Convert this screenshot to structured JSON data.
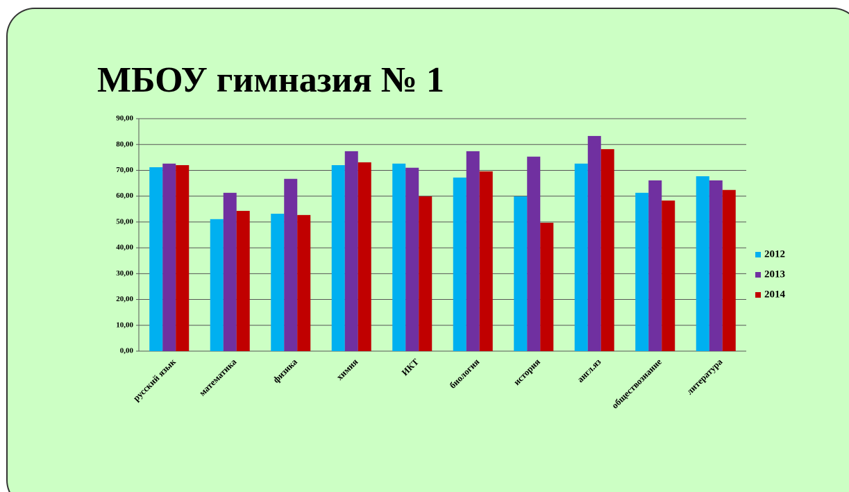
{
  "chart_data": {
    "type": "bar",
    "title": "МБОУ гимназия № 1",
    "categories": [
      "русский язык",
      "математика",
      "физика",
      "химия",
      "ИКТ",
      "биология",
      "история",
      "англ.яз",
      "обществознание",
      "литература"
    ],
    "series": [
      {
        "name": "2012",
        "color": "#00b0f0",
        "values": [
          71.2,
          51.1,
          53.2,
          72.0,
          72.6,
          67.2,
          59.9,
          72.6,
          61.3,
          67.7
        ]
      },
      {
        "name": "2013",
        "color": "#7030a0",
        "values": [
          72.6,
          61.3,
          66.7,
          77.4,
          71.0,
          77.4,
          75.3,
          83.3,
          66.1,
          66.1
        ]
      },
      {
        "name": "2014",
        "color": "#c00000",
        "values": [
          72.0,
          54.3,
          52.7,
          73.1,
          59.9,
          69.6,
          49.7,
          78.2,
          58.3,
          62.4
        ]
      }
    ],
    "ylim": [
      0,
      90
    ],
    "yticks": [
      {
        "value": 0,
        "label": "0,00"
      },
      {
        "value": 10,
        "label": "10,00"
      },
      {
        "value": 20,
        "label": "20,00"
      },
      {
        "value": 30,
        "label": "30,00"
      },
      {
        "value": 40,
        "label": "40,00"
      },
      {
        "value": 50,
        "label": "50,00"
      },
      {
        "value": 60,
        "label": "60,00"
      },
      {
        "value": 70,
        "label": "70,00"
      },
      {
        "value": 80,
        "label": "80,00"
      },
      {
        "value": 90,
        "label": "90,00"
      }
    ],
    "grid": true,
    "legend": "right"
  }
}
